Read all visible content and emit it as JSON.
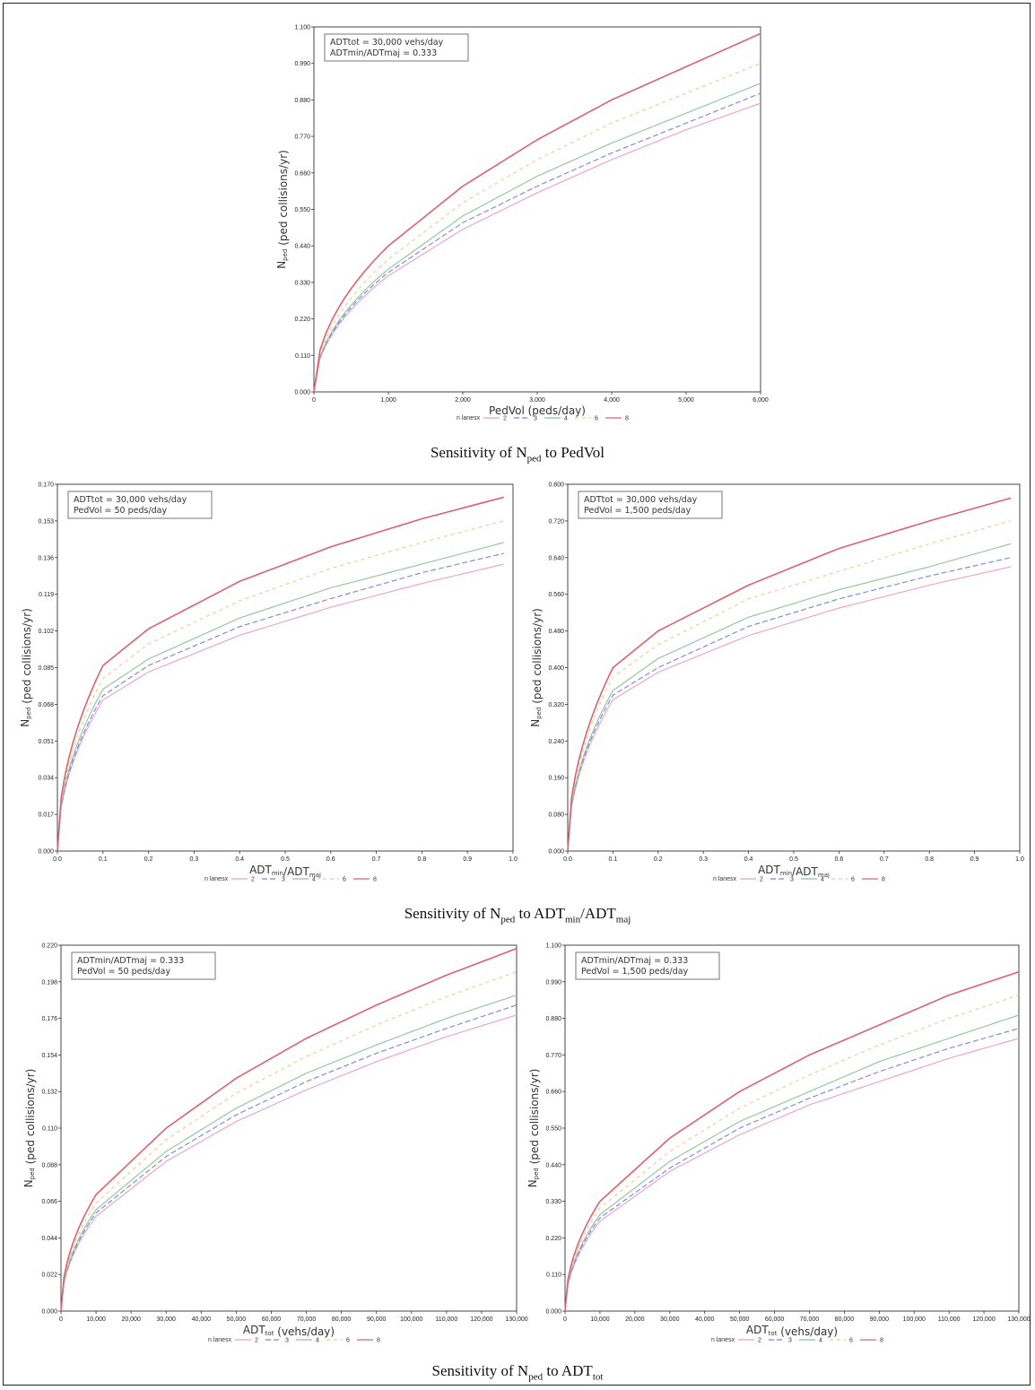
{
  "captions": {
    "sec1": {
      "pre": "Sensitivity of N",
      "sub1": "ped",
      "mid": " to PedVol",
      "sub2": "",
      "post": ""
    },
    "sec2": {
      "pre": "Sensitivity of N",
      "sub1": "ped",
      "mid": " to ADT",
      "sub2": "min",
      "mid2": "/ADT",
      "sub3": "maj"
    },
    "sec3": {
      "pre": "Sensitivity of N",
      "sub1": "ped",
      "mid": " to ADT",
      "sub2": "tot"
    }
  },
  "legend": {
    "title": "n lanesx",
    "colors": {
      "2": "#e8a0c8",
      "3": "#7a80e8",
      "4": "#8cc49a",
      "6": "#f2c890",
      "8": "#e06070"
    }
  },
  "chart_data": [
    {
      "type": "line",
      "xlabel": "PedVol (peds/day)",
      "ylabel": "Nped (ped collisions/yr)",
      "xlim": [
        0,
        6000
      ],
      "ylim": [
        0,
        1.1
      ],
      "xticks": [
        "0",
        "1,000",
        "2,000",
        "3,000",
        "4,000",
        "5,000",
        "6,000"
      ],
      "yticks": [
        "0.000",
        "0.110",
        "0.220",
        "0.330",
        "0.440",
        "0.550",
        "0.660",
        "0.770",
        "0.880",
        "0.990",
        "1.100"
      ],
      "annotation": [
        "ADTtot = 30,000 vehs/day",
        "ADTmin/ADTmaj = 0.333"
      ],
      "legend": [
        "2",
        "3",
        "4",
        "6",
        "8"
      ],
      "series": [
        {
          "name": "2",
          "x": [
            0,
            1000,
            2000,
            3000,
            4000,
            5000,
            6000
          ],
          "y": [
            0,
            0.35,
            0.49,
            0.6,
            0.7,
            0.79,
            0.87
          ]
        },
        {
          "name": "3",
          "x": [
            0,
            1000,
            2000,
            3000,
            4000,
            5000,
            6000
          ],
          "y": [
            0,
            0.36,
            0.51,
            0.62,
            0.72,
            0.81,
            0.9
          ]
        },
        {
          "name": "4",
          "x": [
            0,
            1000,
            2000,
            3000,
            4000,
            5000,
            6000
          ],
          "y": [
            0,
            0.37,
            0.53,
            0.65,
            0.75,
            0.84,
            0.93
          ]
        },
        {
          "name": "6",
          "x": [
            0,
            1000,
            2000,
            3000,
            4000,
            5000,
            6000
          ],
          "y": [
            0,
            0.4,
            0.57,
            0.7,
            0.81,
            0.9,
            0.99
          ]
        },
        {
          "name": "8",
          "x": [
            0,
            1000,
            2000,
            3000,
            4000,
            5000,
            6000
          ],
          "y": [
            0,
            0.44,
            0.62,
            0.76,
            0.88,
            0.98,
            1.08
          ]
        }
      ]
    },
    {
      "type": "line",
      "xlabel": "ADTmin/ADTmaj",
      "ylabel": "Nped (ped collisions/yr)",
      "xlim": [
        0,
        1.0
      ],
      "ylim": [
        0,
        0.17
      ],
      "xticks": [
        "0.0",
        "0.1",
        "0.2",
        "0.3",
        "0.4",
        "0.5",
        "0.6",
        "0.7",
        "0.8",
        "0.9",
        "1.0"
      ],
      "yticks": [
        "0.000",
        "0.017",
        "0.034",
        "0.051",
        "0.068",
        "0.085",
        "0.102",
        "0.119",
        "0.136",
        "0.153",
        "0.170"
      ],
      "annotation": [
        "ADTtot = 30,000 vehs/day",
        "PedVol = 50 peds/day"
      ],
      "legend": [
        "2",
        "3",
        "4",
        "6",
        "8"
      ],
      "series": [
        {
          "name": "2",
          "x": [
            0,
            0.1,
            0.2,
            0.4,
            0.6,
            0.8,
            0.98
          ],
          "y": [
            0,
            0.07,
            0.083,
            0.1,
            0.113,
            0.124,
            0.133
          ]
        },
        {
          "name": "3",
          "x": [
            0,
            0.1,
            0.2,
            0.4,
            0.6,
            0.8,
            0.98
          ],
          "y": [
            0,
            0.072,
            0.086,
            0.104,
            0.117,
            0.129,
            0.138
          ]
        },
        {
          "name": "4",
          "x": [
            0,
            0.1,
            0.2,
            0.4,
            0.6,
            0.8,
            0.98
          ],
          "y": [
            0,
            0.075,
            0.089,
            0.108,
            0.122,
            0.133,
            0.143
          ]
        },
        {
          "name": "6",
          "x": [
            0,
            0.1,
            0.2,
            0.4,
            0.6,
            0.8,
            0.98
          ],
          "y": [
            0,
            0.08,
            0.096,
            0.116,
            0.131,
            0.143,
            0.153
          ]
        },
        {
          "name": "8",
          "x": [
            0,
            0.1,
            0.2,
            0.4,
            0.6,
            0.8,
            0.98
          ],
          "y": [
            0,
            0.086,
            0.103,
            0.125,
            0.141,
            0.154,
            0.164
          ]
        }
      ]
    },
    {
      "type": "line",
      "xlabel": "ADTmin/ADTmaj",
      "ylabel": "Nped (ped collisions/yr)",
      "xlim": [
        0,
        1.0
      ],
      "ylim": [
        0,
        0.8
      ],
      "xticks": [
        "0.0",
        "0.1",
        "0.2",
        "0.3",
        "0.4",
        "0.5",
        "0.6",
        "0.7",
        "0.8",
        "0.9",
        "1.0"
      ],
      "yticks": [
        "0.000",
        "0.080",
        "0.160",
        "0.240",
        "0.320",
        "0.400",
        "0.480",
        "0.560",
        "0.640",
        "0.720",
        "0.800"
      ],
      "annotation": [
        "ADTtot = 30,000 vehs/day",
        "PedVol = 1,500 peds/day"
      ],
      "legend": [
        "2",
        "3",
        "4",
        "6",
        "8"
      ],
      "series": [
        {
          "name": "2",
          "x": [
            0,
            0.1,
            0.2,
            0.4,
            0.6,
            0.8,
            0.98
          ],
          "y": [
            0,
            0.33,
            0.39,
            0.47,
            0.53,
            0.58,
            0.62
          ]
        },
        {
          "name": "3",
          "x": [
            0,
            0.1,
            0.2,
            0.4,
            0.6,
            0.8,
            0.98
          ],
          "y": [
            0,
            0.34,
            0.4,
            0.49,
            0.55,
            0.6,
            0.64
          ]
        },
        {
          "name": "4",
          "x": [
            0,
            0.1,
            0.2,
            0.4,
            0.6,
            0.8,
            0.98
          ],
          "y": [
            0,
            0.35,
            0.42,
            0.51,
            0.57,
            0.62,
            0.67
          ]
        },
        {
          "name": "6",
          "x": [
            0,
            0.1,
            0.2,
            0.4,
            0.6,
            0.8,
            0.98
          ],
          "y": [
            0,
            0.38,
            0.45,
            0.55,
            0.61,
            0.67,
            0.72
          ]
        },
        {
          "name": "8",
          "x": [
            0,
            0.1,
            0.2,
            0.4,
            0.6,
            0.8,
            0.98
          ],
          "y": [
            0,
            0.4,
            0.48,
            0.58,
            0.66,
            0.72,
            0.77
          ]
        }
      ]
    },
    {
      "type": "line",
      "xlabel": "ADTtot (vehs/day)",
      "ylabel": "Nped (ped collisions/yr)",
      "xlim": [
        0,
        130000
      ],
      "ylim": [
        0,
        0.22
      ],
      "xticks": [
        "0",
        "10,000",
        "20,000",
        "30,000",
        "40,000",
        "50,000",
        "60,000",
        "70,000",
        "80,000",
        "90,000",
        "100,000",
        "110,000",
        "120,000",
        "130,000"
      ],
      "yticks": [
        "0.000",
        "0.022",
        "0.044",
        "0.066",
        "0.088",
        "0.110",
        "0.132",
        "0.154",
        "0.176",
        "0.198",
        "0.220"
      ],
      "annotation": [
        "ADTmin/ADTmaj = 0.333",
        "PedVol = 50 peds/day"
      ],
      "legend": [
        "2",
        "3",
        "4",
        "6",
        "8"
      ],
      "series": [
        {
          "name": "2",
          "x": [
            0,
            10000,
            30000,
            50000,
            70000,
            90000,
            110000,
            130000
          ],
          "y": [
            0,
            0.057,
            0.09,
            0.114,
            0.133,
            0.15,
            0.165,
            0.178
          ]
        },
        {
          "name": "3",
          "x": [
            0,
            10000,
            30000,
            50000,
            70000,
            90000,
            110000,
            130000
          ],
          "y": [
            0,
            0.059,
            0.093,
            0.118,
            0.138,
            0.155,
            0.17,
            0.184
          ]
        },
        {
          "name": "4",
          "x": [
            0,
            10000,
            30000,
            50000,
            70000,
            90000,
            110000,
            130000
          ],
          "y": [
            0,
            0.061,
            0.096,
            0.122,
            0.143,
            0.16,
            0.176,
            0.19
          ]
        },
        {
          "name": "6",
          "x": [
            0,
            10000,
            30000,
            50000,
            70000,
            90000,
            110000,
            130000
          ],
          "y": [
            0,
            0.065,
            0.103,
            0.131,
            0.153,
            0.172,
            0.189,
            0.204
          ]
        },
        {
          "name": "8",
          "x": [
            0,
            10000,
            30000,
            50000,
            70000,
            90000,
            110000,
            130000
          ],
          "y": [
            0,
            0.07,
            0.11,
            0.14,
            0.164,
            0.184,
            0.202,
            0.218
          ]
        }
      ]
    },
    {
      "type": "line",
      "xlabel": "ADTtot (vehs/day)",
      "ylabel": "Nped (ped collisions/yr)",
      "xlim": [
        0,
        130000
      ],
      "ylim": [
        0,
        1.1
      ],
      "xticks": [
        "0",
        "10,000",
        "20,000",
        "30,000",
        "40,000",
        "50,000",
        "60,000",
        "70,000",
        "80,000",
        "90,000",
        "100,000",
        "110,000",
        "120,000",
        "130,000"
      ],
      "yticks": [
        "0.000",
        "0.110",
        "0.220",
        "0.330",
        "0.440",
        "0.550",
        "0.660",
        "0.770",
        "0.880",
        "0.990",
        "1.100"
      ],
      "annotation": [
        "ADTmin/ADTmaj = 0.333",
        "PedVol = 1,500 peds/day"
      ],
      "legend": [
        "2",
        "3",
        "4",
        "6",
        "8"
      ],
      "series": [
        {
          "name": "2",
          "x": [
            0,
            10000,
            30000,
            50000,
            70000,
            90000,
            110000,
            130000
          ],
          "y": [
            0,
            0.27,
            0.42,
            0.53,
            0.62,
            0.69,
            0.76,
            0.82
          ]
        },
        {
          "name": "3",
          "x": [
            0,
            10000,
            30000,
            50000,
            70000,
            90000,
            110000,
            130000
          ],
          "y": [
            0,
            0.28,
            0.43,
            0.55,
            0.64,
            0.72,
            0.79,
            0.85
          ]
        },
        {
          "name": "4",
          "x": [
            0,
            10000,
            30000,
            50000,
            70000,
            90000,
            110000,
            130000
          ],
          "y": [
            0,
            0.29,
            0.45,
            0.57,
            0.66,
            0.75,
            0.82,
            0.89
          ]
        },
        {
          "name": "6",
          "x": [
            0,
            10000,
            30000,
            50000,
            70000,
            90000,
            110000,
            130000
          ],
          "y": [
            0,
            0.31,
            0.48,
            0.61,
            0.71,
            0.8,
            0.88,
            0.95
          ]
        },
        {
          "name": "8",
          "x": [
            0,
            10000,
            30000,
            50000,
            70000,
            90000,
            110000,
            130000
          ],
          "y": [
            0,
            0.33,
            0.52,
            0.66,
            0.77,
            0.86,
            0.95,
            1.02
          ]
        }
      ]
    }
  ]
}
